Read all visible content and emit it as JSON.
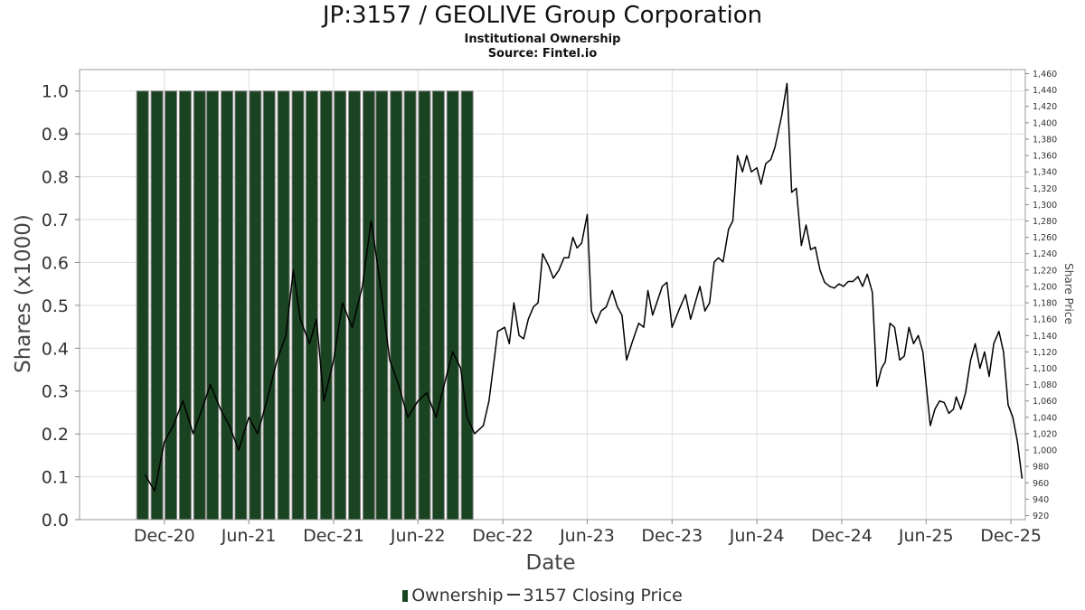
{
  "header": {
    "title": "JP:3157 / GEOLIVE Group Corporation",
    "subtitle": "Institutional Ownership",
    "source": "Source: Fintel.io"
  },
  "legend": {
    "ownership": "Ownership",
    "price": "3157 Closing Price"
  },
  "colors": {
    "bar_fill": "#1a4321",
    "bar_edge": "#888888",
    "line": "#000000",
    "grid": "#dddddd"
  },
  "chart_data": {
    "type": "bar+line",
    "xlabel": "Date",
    "ylabel_left": "Shares (x1000)",
    "ylabel_right": "Share Price",
    "x_ticks": [
      "Dec-20",
      "Jun-21",
      "Dec-21",
      "Jun-22",
      "Dec-22",
      "Jun-23",
      "Dec-23",
      "Jun-24",
      "Dec-24",
      "Jun-25",
      "Dec-25"
    ],
    "x_tick_dates": [
      "2020-12-01",
      "2021-06-01",
      "2021-12-01",
      "2022-06-01",
      "2022-12-01",
      "2023-06-01",
      "2023-12-01",
      "2024-06-01",
      "2024-12-01",
      "2025-06-01",
      "2025-12-01"
    ],
    "x_range": [
      "2020-06-01",
      "2026-01-01"
    ],
    "y_left_range": [
      0,
      1.05
    ],
    "y_left_ticks": [
      "0.0",
      "0.1",
      "0.2",
      "0.3",
      "0.4",
      "0.5",
      "0.6",
      "0.7",
      "0.8",
      "0.9",
      "1.0"
    ],
    "y_right_range": [
      915,
      1465
    ],
    "y_right_ticks": [
      "920",
      "940",
      "960",
      "980",
      "1,000",
      "1,020",
      "1,040",
      "1,060",
      "1,080",
      "1,100",
      "1,120",
      "1,140",
      "1,160",
      "1,180",
      "1,200",
      "1,220",
      "1,240",
      "1,260",
      "1,280",
      "1,300",
      "1,320",
      "1,340",
      "1,360",
      "1,380",
      "1,400",
      "1,420",
      "1,440",
      "1,460"
    ],
    "grid": true,
    "legend_position": "bottom",
    "series": [
      {
        "name": "Ownership",
        "type": "bar",
        "dates": [
          "2020-10-15",
          "2020-11-15",
          "2020-12-15",
          "2021-01-15",
          "2021-02-15",
          "2021-03-15",
          "2021-04-15",
          "2021-05-15",
          "2021-06-15",
          "2021-07-15",
          "2021-08-15",
          "2021-09-15",
          "2021-10-15",
          "2021-11-15",
          "2021-12-15",
          "2022-01-15",
          "2022-02-15",
          "2022-03-15",
          "2022-04-15",
          "2022-05-15",
          "2022-06-15",
          "2022-07-15",
          "2022-08-15",
          "2022-09-15"
        ],
        "values": [
          1,
          1,
          1,
          1,
          1,
          1,
          1,
          1,
          1,
          1,
          1,
          1,
          1,
          1,
          1,
          1,
          1,
          1,
          1,
          1,
          1,
          1,
          1,
          1
        ]
      },
      {
        "name": "3157 Closing Price",
        "type": "line",
        "points": [
          [
            "2020-10-20",
            970
          ],
          [
            "2020-11-10",
            950
          ],
          [
            "2020-12-01",
            1010
          ],
          [
            "2020-12-20",
            1030
          ],
          [
            "2021-01-10",
            1060
          ],
          [
            "2021-02-01",
            1020
          ],
          [
            "2021-02-20",
            1050
          ],
          [
            "2021-03-10",
            1080
          ],
          [
            "2021-04-01",
            1050
          ],
          [
            "2021-04-20",
            1030
          ],
          [
            "2021-05-10",
            1000
          ],
          [
            "2021-06-01",
            1040
          ],
          [
            "2021-06-20",
            1020
          ],
          [
            "2021-07-10",
            1060
          ],
          [
            "2021-08-01",
            1110
          ],
          [
            "2021-08-20",
            1140
          ],
          [
            "2021-09-05",
            1220
          ],
          [
            "2021-09-20",
            1160
          ],
          [
            "2021-10-10",
            1130
          ],
          [
            "2021-10-25",
            1160
          ],
          [
            "2021-11-10",
            1060
          ],
          [
            "2021-12-01",
            1110
          ],
          [
            "2021-12-20",
            1180
          ],
          [
            "2022-01-10",
            1150
          ],
          [
            "2022-02-01",
            1200
          ],
          [
            "2022-02-20",
            1280
          ],
          [
            "2022-03-10",
            1210
          ],
          [
            "2022-04-01",
            1110
          ],
          [
            "2022-04-20",
            1080
          ],
          [
            "2022-05-10",
            1040
          ],
          [
            "2022-06-01",
            1060
          ],
          [
            "2022-06-20",
            1070
          ],
          [
            "2022-07-10",
            1040
          ],
          [
            "2022-08-01",
            1090
          ],
          [
            "2022-08-15",
            1120
          ],
          [
            "2022-09-01",
            1100
          ],
          [
            "2022-09-15",
            1040
          ],
          [
            "2022-10-01",
            1020
          ],
          [
            "2022-10-20",
            1030
          ],
          [
            "2022-11-01",
            1060
          ],
          [
            "2022-11-10",
            1100
          ],
          [
            "2022-11-20",
            1145
          ],
          [
            "2022-12-05",
            1150
          ],
          [
            "2022-12-15",
            1130
          ],
          [
            "2022-12-25",
            1180
          ],
          [
            "2023-01-05",
            1140
          ],
          [
            "2023-01-15",
            1136
          ],
          [
            "2023-01-25",
            1160
          ],
          [
            "2023-02-05",
            1175
          ],
          [
            "2023-02-15",
            1180
          ],
          [
            "2023-02-25",
            1240
          ],
          [
            "2023-03-10",
            1225
          ],
          [
            "2023-03-20",
            1210
          ],
          [
            "2023-04-01",
            1220
          ],
          [
            "2023-04-12",
            1235
          ],
          [
            "2023-04-22",
            1235
          ],
          [
            "2023-05-01",
            1260
          ],
          [
            "2023-05-10",
            1247
          ],
          [
            "2023-05-20",
            1253
          ],
          [
            "2023-06-01",
            1288
          ],
          [
            "2023-06-10",
            1170
          ],
          [
            "2023-06-20",
            1155
          ],
          [
            "2023-07-01",
            1170
          ],
          [
            "2023-07-12",
            1175
          ],
          [
            "2023-07-25",
            1195
          ],
          [
            "2023-08-05",
            1175
          ],
          [
            "2023-08-15",
            1165
          ],
          [
            "2023-08-25",
            1110
          ],
          [
            "2023-09-05",
            1130
          ],
          [
            "2023-09-20",
            1155
          ],
          [
            "2023-10-01",
            1150
          ],
          [
            "2023-10-10",
            1195
          ],
          [
            "2023-10-20",
            1165
          ],
          [
            "2023-11-01",
            1185
          ],
          [
            "2023-11-10",
            1200
          ],
          [
            "2023-11-20",
            1205
          ],
          [
            "2023-12-01",
            1150
          ],
          [
            "2023-12-15",
            1170
          ],
          [
            "2023-12-30",
            1190
          ],
          [
            "2024-01-10",
            1160
          ],
          [
            "2024-01-20",
            1180
          ],
          [
            "2024-01-30",
            1200
          ],
          [
            "2024-02-10",
            1170
          ],
          [
            "2024-02-20",
            1180
          ],
          [
            "2024-03-01",
            1230
          ],
          [
            "2024-03-10",
            1235
          ],
          [
            "2024-03-20",
            1230
          ],
          [
            "2024-04-01",
            1270
          ],
          [
            "2024-04-10",
            1280
          ],
          [
            "2024-04-20",
            1360
          ],
          [
            "2024-05-01",
            1340
          ],
          [
            "2024-05-10",
            1360
          ],
          [
            "2024-05-20",
            1340
          ],
          [
            "2024-06-01",
            1345
          ],
          [
            "2024-06-10",
            1325
          ],
          [
            "2024-06-20",
            1350
          ],
          [
            "2024-07-01",
            1355
          ],
          [
            "2024-07-10",
            1370
          ],
          [
            "2024-07-25",
            1410
          ],
          [
            "2024-08-05",
            1448
          ],
          [
            "2024-08-15",
            1315
          ],
          [
            "2024-08-25",
            1320
          ],
          [
            "2024-09-05",
            1250
          ],
          [
            "2024-09-15",
            1275
          ],
          [
            "2024-09-25",
            1245
          ],
          [
            "2024-10-05",
            1248
          ],
          [
            "2024-10-15",
            1220
          ],
          [
            "2024-10-25",
            1205
          ],
          [
            "2024-11-05",
            1200
          ],
          [
            "2024-11-15",
            1198
          ],
          [
            "2024-11-25",
            1203
          ],
          [
            "2024-12-05",
            1200
          ],
          [
            "2024-12-15",
            1206
          ],
          [
            "2024-12-25",
            1206
          ],
          [
            "2025-01-05",
            1212
          ],
          [
            "2025-01-15",
            1200
          ],
          [
            "2025-01-25",
            1215
          ],
          [
            "2025-02-05",
            1193
          ],
          [
            "2025-02-15",
            1078
          ],
          [
            "2025-02-25",
            1100
          ],
          [
            "2025-03-05",
            1108
          ],
          [
            "2025-03-15",
            1155
          ],
          [
            "2025-03-25",
            1150
          ],
          [
            "2025-04-05",
            1110
          ],
          [
            "2025-04-15",
            1115
          ],
          [
            "2025-04-25",
            1150
          ],
          [
            "2025-05-05",
            1130
          ],
          [
            "2025-05-15",
            1140
          ],
          [
            "2025-05-25",
            1120
          ],
          [
            "2025-06-01",
            1080
          ],
          [
            "2025-06-10",
            1030
          ],
          [
            "2025-06-20",
            1050
          ],
          [
            "2025-06-30",
            1060
          ],
          [
            "2025-07-10",
            1058
          ],
          [
            "2025-07-20",
            1045
          ],
          [
            "2025-07-30",
            1050
          ],
          [
            "2025-08-05",
            1065
          ],
          [
            "2025-08-15",
            1050
          ],
          [
            "2025-08-25",
            1070
          ],
          [
            "2025-09-05",
            1110
          ],
          [
            "2025-09-15",
            1130
          ],
          [
            "2025-09-25",
            1100
          ],
          [
            "2025-10-05",
            1120
          ],
          [
            "2025-10-15",
            1090
          ],
          [
            "2025-10-25",
            1130
          ],
          [
            "2025-11-05",
            1145
          ],
          [
            "2025-11-15",
            1120
          ],
          [
            "2025-11-25",
            1055
          ],
          [
            "2025-12-05",
            1040
          ],
          [
            "2025-12-15",
            1010
          ],
          [
            "2025-12-25",
            965
          ]
        ]
      }
    ]
  }
}
